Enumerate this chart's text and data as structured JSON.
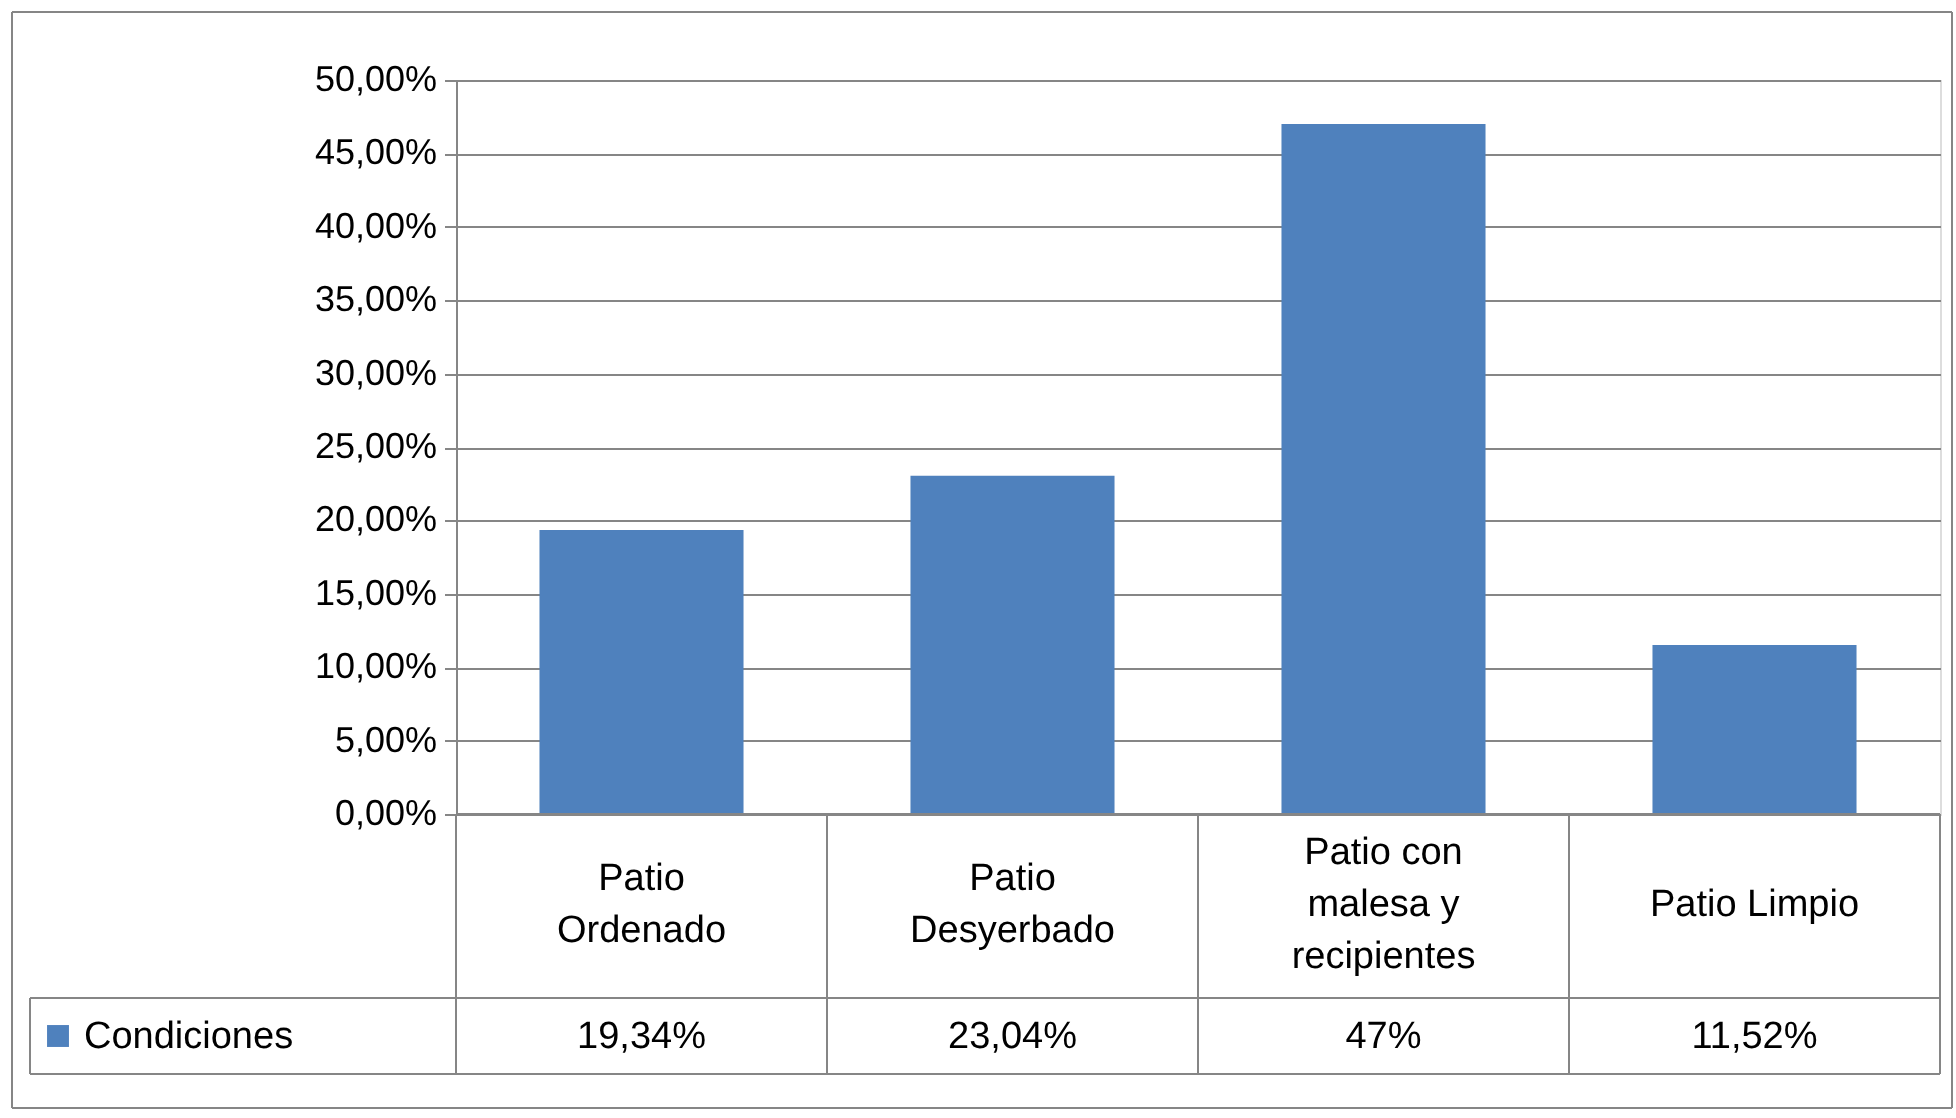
{
  "chart_data": {
    "type": "bar",
    "categories": [
      "Patio Ordenado",
      "Patio Desyerbado",
      "Patio con malesa y recipientes",
      "Patio Limpio"
    ],
    "series": [
      {
        "name": "Condiciones",
        "color": "#4f81bd",
        "values": [
          19.34,
          23.04,
          47,
          11.52
        ],
        "value_labels": [
          "19,34%",
          "23,04%",
          "47%",
          "11,52%"
        ]
      }
    ],
    "ylim": [
      0,
      50
    ],
    "yticks": [
      {
        "value": 0,
        "label": "0,00%"
      },
      {
        "value": 5,
        "label": "5,00%"
      },
      {
        "value": 10,
        "label": "10,00%"
      },
      {
        "value": 15,
        "label": "15,00%"
      },
      {
        "value": 20,
        "label": "20,00%"
      },
      {
        "value": 25,
        "label": "25,00%"
      },
      {
        "value": 30,
        "label": "30,00%"
      },
      {
        "value": 35,
        "label": "35,00%"
      },
      {
        "value": 40,
        "label": "40,00%"
      },
      {
        "value": 45,
        "label": "45,00%"
      },
      {
        "value": 50,
        "label": "50,00%"
      }
    ],
    "grid": "y",
    "legend": "bottom"
  }
}
